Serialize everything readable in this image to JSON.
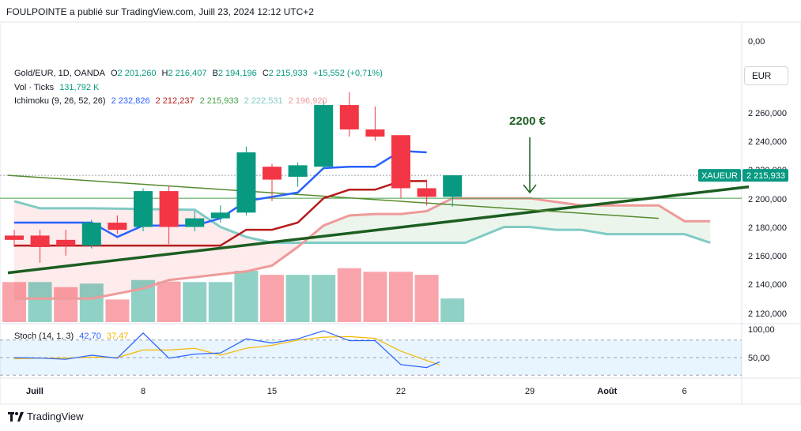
{
  "header": {
    "published": "FOULPOINTE a publié sur TradingView.com, Juill 23, 2024 12:12 UTC+2"
  },
  "legend": {
    "symbol": "Gold/EUR, 1D, OANDA",
    "open_label": "O",
    "open": "2 201,260",
    "high_label": "H",
    "high": "2 216,407",
    "low_label": "B",
    "low": "2 194,196",
    "close_label": "C",
    "close": "2 215,933",
    "change": "+15,552 (+0,71%)",
    "vol_label": "Vol · Ticks",
    "vol": "131,792 K",
    "ichimoku_label": "Ichimoku (9, 26, 52, 26)",
    "ichimoku_values": [
      "2 232,826",
      "2 212,237",
      "2 215,933",
      "2 222,531",
      "2 196,920"
    ],
    "stoch_label": "Stoch (14, 1, 3)",
    "stoch_k": "42,70",
    "stoch_d": "37,47"
  },
  "currency_button": "EUR",
  "price_tag": {
    "symbol": "XAUEUR",
    "value": "2 215,933"
  },
  "annotation": {
    "text": "2200 €"
  },
  "footer": {
    "brand": "TradingView"
  },
  "colors": {
    "up": "#089981",
    "down": "#f23645",
    "tenkan": "#2962ff",
    "kijun": "#b71c1c",
    "chikou": "#43a047",
    "span_a": "#ef9a9a",
    "span_b": "#80cbc4",
    "trend": "#1b5e20",
    "stoch_k": "#2962ff",
    "stoch_d": "#f5b800"
  },
  "chart_data": {
    "type": "candlestick",
    "price_axis": {
      "range": [
        2110,
        2280
      ],
      "ticks": [
        "0,00",
        "2 260,000",
        "2 240,000",
        "2 220,000",
        "2 200,000",
        "2 180,000",
        "2 160,000",
        "2 140,000",
        "2 120,000"
      ]
    },
    "stoch_axis": {
      "range": [
        20,
        100
      ],
      "ticks": [
        "100,00",
        "50,00"
      ],
      "band": [
        20,
        80
      ]
    },
    "x_labels": [
      {
        "i": 0,
        "label": "Juill"
      },
      {
        "i": 5,
        "label": "8"
      },
      {
        "i": 10,
        "label": "15"
      },
      {
        "i": 15,
        "label": "22"
      },
      {
        "i": 20,
        "label": "29"
      },
      {
        "i": 23,
        "label": "Août"
      },
      {
        "i": 26,
        "label": "6"
      }
    ],
    "candles": [
      {
        "o": 2174,
        "h": 2178,
        "l": 2166,
        "c": 2171
      },
      {
        "o": 2174,
        "h": 2178,
        "l": 2155,
        "c": 2166
      },
      {
        "o": 2171,
        "h": 2178,
        "l": 2160,
        "c": 2167
      },
      {
        "o": 2167,
        "h": 2185,
        "l": 2165,
        "c": 2183
      },
      {
        "o": 2183,
        "h": 2188,
        "l": 2175,
        "c": 2178
      },
      {
        "o": 2180,
        "h": 2207,
        "l": 2177,
        "c": 2205
      },
      {
        "o": 2205,
        "h": 2209,
        "l": 2168,
        "c": 2180
      },
      {
        "o": 2180,
        "h": 2191,
        "l": 2177,
        "c": 2186
      },
      {
        "o": 2186,
        "h": 2195,
        "l": 2183,
        "c": 2190
      },
      {
        "o": 2190,
        "h": 2236,
        "l": 2188,
        "c": 2232
      },
      {
        "o": 2222,
        "h": 2224,
        "l": 2198,
        "c": 2213
      },
      {
        "o": 2215,
        "h": 2225,
        "l": 2208,
        "c": 2223
      },
      {
        "o": 2222,
        "h": 2268,
        "l": 2220,
        "c": 2265
      },
      {
        "o": 2265,
        "h": 2274,
        "l": 2243,
        "c": 2248
      },
      {
        "o": 2248,
        "h": 2264,
        "l": 2240,
        "c": 2243
      },
      {
        "o": 2244,
        "h": 2244,
        "l": 2200,
        "c": 2207
      },
      {
        "o": 2207,
        "h": 2213,
        "l": 2195,
        "c": 2201
      },
      {
        "o": 2201,
        "h": 2216,
        "l": 2194,
        "c": 2216
      }
    ],
    "volume": [
      {
        "v": 0.78,
        "up": false
      },
      {
        "v": 0.78,
        "up": true
      },
      {
        "v": 0.68,
        "up": false
      },
      {
        "v": 0.75,
        "up": true
      },
      {
        "v": 0.44,
        "up": false
      },
      {
        "v": 0.82,
        "up": true
      },
      {
        "v": 0.79,
        "up": false
      },
      {
        "v": 0.78,
        "up": true
      },
      {
        "v": 0.78,
        "up": true
      },
      {
        "v": 1.0,
        "up": true
      },
      {
        "v": 0.92,
        "up": false
      },
      {
        "v": 0.92,
        "up": true
      },
      {
        "v": 0.92,
        "up": true
      },
      {
        "v": 1.05,
        "up": false
      },
      {
        "v": 0.98,
        "up": false
      },
      {
        "v": 0.98,
        "up": false
      },
      {
        "v": 0.92,
        "up": false
      },
      {
        "v": 0.46,
        "up": true
      }
    ],
    "tenkan": [
      [
        0,
        2183
      ],
      [
        3,
        2183
      ],
      [
        4,
        2173
      ],
      [
        5,
        2181
      ],
      [
        7,
        2181
      ],
      [
        8,
        2186
      ],
      [
        9,
        2198
      ],
      [
        11,
        2204
      ],
      [
        12,
        2221
      ],
      [
        13,
        2222
      ],
      [
        14,
        2222
      ],
      [
        15,
        2233
      ],
      [
        16,
        2232
      ]
    ],
    "kijun": [
      [
        0,
        2167
      ],
      [
        8,
        2167
      ],
      [
        9,
        2178
      ],
      [
        10,
        2178
      ],
      [
        11,
        2183
      ],
      [
        12,
        2200
      ],
      [
        13,
        2206
      ],
      [
        14,
        2206
      ],
      [
        15,
        2212
      ],
      [
        16,
        2212
      ]
    ],
    "chikou": [
      [
        0,
        2216
      ],
      [
        16.5,
        2201
      ]
    ],
    "span_a": [
      [
        0,
        2130
      ],
      [
        3,
        2130
      ],
      [
        5,
        2137
      ],
      [
        6,
        2143
      ],
      [
        7,
        2145
      ],
      [
        8,
        2147
      ],
      [
        9,
        2149
      ],
      [
        10,
        2153
      ],
      [
        11,
        2166
      ],
      [
        12,
        2181
      ],
      [
        13,
        2188
      ],
      [
        14,
        2189
      ],
      [
        15,
        2189
      ],
      [
        16,
        2191
      ],
      [
        17,
        2200
      ],
      [
        20,
        2200
      ],
      [
        22,
        2195
      ],
      [
        25,
        2195
      ],
      [
        26,
        2184
      ],
      [
        27,
        2184
      ]
    ],
    "span_b": [
      [
        0,
        2198
      ],
      [
        1,
        2193
      ],
      [
        3,
        2193
      ],
      [
        7,
        2192
      ],
      [
        8,
        2180
      ],
      [
        9,
        2173
      ],
      [
        10,
        2169
      ],
      [
        17.5,
        2169
      ],
      [
        19,
        2180
      ],
      [
        20,
        2180
      ],
      [
        21,
        2178
      ],
      [
        22,
        2178
      ],
      [
        23,
        2175
      ],
      [
        26,
        2175
      ],
      [
        27,
        2169
      ]
    ],
    "trendlines": [
      {
        "name": "support",
        "from": [
          0,
          2148
        ],
        "to": [
          28.5,
          2208
        ]
      },
      {
        "name": "resistance",
        "from": [
          0,
          2216
        ],
        "to": [
          25,
          2186
        ]
      }
    ],
    "horizontal_levels": [
      2200,
      2216
    ],
    "stoch_k_values": [
      [
        0,
        50
      ],
      [
        1,
        49
      ],
      [
        2,
        47
      ],
      [
        3,
        54
      ],
      [
        4,
        49
      ],
      [
        5,
        92
      ],
      [
        6,
        49
      ],
      [
        7,
        56
      ],
      [
        8,
        58
      ],
      [
        9,
        82
      ],
      [
        10,
        75
      ],
      [
        11,
        82
      ],
      [
        12,
        96
      ],
      [
        13,
        79
      ],
      [
        14,
        79
      ],
      [
        15,
        38
      ],
      [
        16,
        33
      ],
      [
        16.5,
        42.7
      ]
    ],
    "stoch_d_values": [
      [
        0,
        48
      ],
      [
        1,
        49
      ],
      [
        2,
        49
      ],
      [
        3,
        51
      ],
      [
        4,
        50
      ],
      [
        5,
        63
      ],
      [
        6,
        63
      ],
      [
        7,
        66
      ],
      [
        8,
        54
      ],
      [
        9,
        66
      ],
      [
        10,
        71
      ],
      [
        11,
        80
      ],
      [
        12,
        85
      ],
      [
        13,
        86
      ],
      [
        14,
        83
      ],
      [
        15,
        61
      ],
      [
        16,
        45
      ],
      [
        16.5,
        37.5
      ]
    ]
  }
}
